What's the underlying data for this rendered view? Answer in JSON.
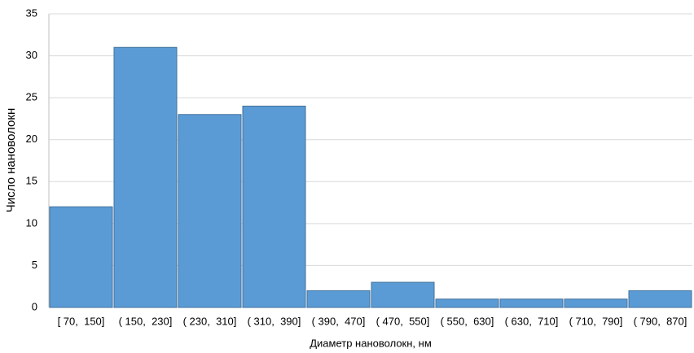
{
  "chart_data": {
    "type": "bar",
    "x_label": "Диаметр нановолокн, нм",
    "y_label": "Число нановолокн",
    "categories": [
      "[ 70,  150]",
      "( 150,  230]",
      "( 230,  310]",
      "( 310,  390]",
      "( 390,  470]",
      "( 470,  550]",
      "( 550,  630]",
      "( 630,  710]",
      "( 710,  790]",
      "( 790,  870]"
    ],
    "values": [
      12,
      31,
      23,
      24,
      2,
      3,
      1,
      1,
      1,
      2
    ],
    "color": "#5b9bd5",
    "ylim": [
      0,
      35
    ],
    "yticks": [
      0,
      5,
      10,
      15,
      20,
      25,
      30,
      35
    ],
    "grid": true
  }
}
